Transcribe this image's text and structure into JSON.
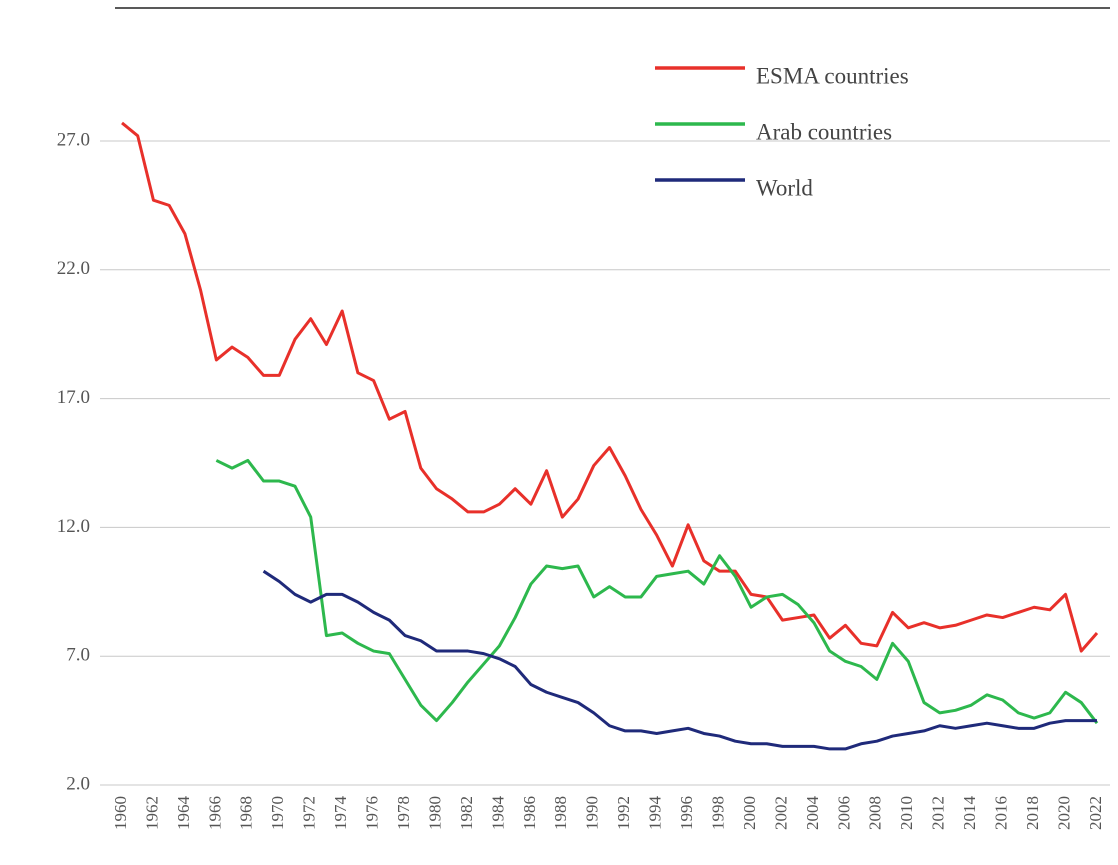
{
  "chart_data": {
    "type": "line",
    "x": [
      1960,
      1961,
      1962,
      1963,
      1964,
      1965,
      1966,
      1967,
      1968,
      1969,
      1970,
      1971,
      1972,
      1973,
      1974,
      1975,
      1976,
      1977,
      1978,
      1979,
      1980,
      1981,
      1982,
      1983,
      1984,
      1985,
      1986,
      1987,
      1988,
      1989,
      1990,
      1991,
      1992,
      1993,
      1994,
      1995,
      1996,
      1997,
      1998,
      1999,
      2000,
      2001,
      2002,
      2003,
      2004,
      2005,
      2006,
      2007,
      2008,
      2009,
      2010,
      2011,
      2012,
      2013,
      2014,
      2015,
      2016,
      2017,
      2018,
      2019,
      2020,
      2021,
      2022
    ],
    "series": [
      {
        "name": "ESMA countries",
        "color": "#e8302a",
        "values": [
          27.7,
          27.2,
          24.7,
          24.5,
          23.4,
          21.2,
          18.5,
          19.0,
          18.6,
          17.9,
          17.9,
          19.3,
          20.1,
          19.1,
          20.4,
          18.0,
          17.7,
          16.2,
          16.5,
          14.3,
          13.5,
          13.1,
          12.6,
          12.6,
          12.9,
          13.5,
          12.9,
          14.2,
          12.4,
          13.1,
          14.4,
          15.1,
          14.0,
          12.7,
          11.7,
          10.5,
          12.1,
          10.7,
          10.3,
          10.3,
          9.4,
          9.3,
          8.4,
          8.5,
          8.6,
          7.7,
          8.2,
          7.5,
          7.4,
          8.7,
          8.1,
          8.3,
          8.1,
          8.2,
          8.4,
          8.6,
          8.5,
          8.7,
          8.9,
          8.8,
          9.4,
          7.2,
          7.9
        ]
      },
      {
        "name": "Arab countries",
        "color": "#2db84d",
        "values": [
          null,
          null,
          null,
          null,
          null,
          null,
          14.6,
          14.3,
          14.6,
          13.8,
          13.8,
          13.6,
          12.4,
          7.8,
          7.9,
          7.5,
          7.2,
          7.1,
          6.1,
          5.1,
          4.5,
          5.2,
          6.0,
          6.7,
          7.4,
          8.5,
          9.8,
          10.5,
          10.4,
          10.5,
          9.3,
          9.7,
          9.3,
          9.3,
          10.1,
          10.2,
          10.3,
          9.8,
          10.9,
          10.1,
          8.9,
          9.3,
          9.4,
          9.0,
          8.3,
          7.2,
          6.8,
          6.6,
          6.1,
          7.5,
          6.8,
          5.2,
          4.8,
          4.9,
          5.1,
          5.5,
          5.3,
          4.8,
          4.6,
          4.8,
          5.6,
          5.2,
          4.4
        ]
      },
      {
        "name": "World",
        "color": "#1f2a7a",
        "values": [
          null,
          null,
          null,
          null,
          null,
          null,
          null,
          null,
          null,
          10.3,
          9.9,
          9.4,
          9.1,
          9.4,
          9.4,
          9.1,
          8.7,
          8.4,
          7.8,
          7.6,
          7.2,
          7.2,
          7.2,
          7.1,
          6.9,
          6.6,
          5.9,
          5.6,
          5.4,
          5.2,
          4.8,
          4.3,
          4.1,
          4.1,
          4.0,
          4.1,
          4.2,
          4.0,
          3.9,
          3.7,
          3.6,
          3.6,
          3.5,
          3.5,
          3.5,
          3.4,
          3.4,
          3.6,
          3.7,
          3.9,
          4.0,
          4.1,
          4.3,
          4.2,
          4.3,
          4.4,
          4.3,
          4.2,
          4.2,
          4.4,
          4.5,
          4.5,
          4.5
        ]
      }
    ],
    "xlim": [
      1960,
      2022
    ],
    "xticks": [
      1960,
      1962,
      1964,
      1966,
      1968,
      1970,
      1972,
      1974,
      1976,
      1978,
      1980,
      1982,
      1984,
      1986,
      1988,
      1990,
      1992,
      1994,
      1996,
      1998,
      2000,
      2002,
      2004,
      2006,
      2008,
      2010,
      2012,
      2014,
      2016,
      2018,
      2020,
      2022
    ],
    "ylim": [
      2,
      30
    ],
    "yticks": [
      {
        "value": 2,
        "label": "2.0"
      },
      {
        "value": 7,
        "label": "7.0"
      },
      {
        "value": 12,
        "label": "12.0"
      },
      {
        "value": 17,
        "label": "17.0"
      },
      {
        "value": 22,
        "label": "22.0"
      },
      {
        "value": 27,
        "label": "27.0"
      }
    ],
    "grid": true,
    "legend": "upper right"
  }
}
